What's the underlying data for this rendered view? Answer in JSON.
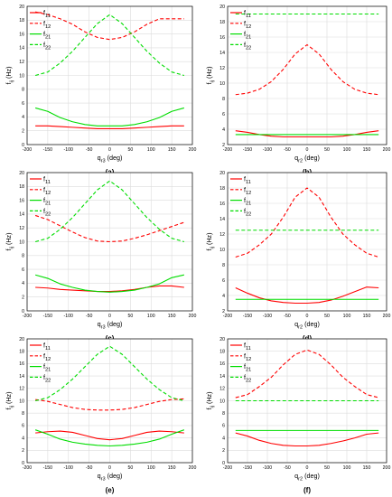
{
  "colors": {
    "red": "#ff0000",
    "green": "#00dd00",
    "grid": "#dcdcdc",
    "axis": "#000000"
  },
  "chart_data": [
    {
      "panel_label": "(a)",
      "type": "line",
      "xlabel": "q",
      "xlabel_sub": "r3",
      "xlabel_unit": " (deg)",
      "ylabel": "f",
      "ylabel_sub": "ij",
      "ylabel_unit": " (Hz)",
      "xlim": [
        -200,
        200
      ],
      "ylim": [
        0,
        20
      ],
      "xticks": [
        "-200",
        "-150",
        "-100",
        "-50",
        "0",
        "50",
        "100",
        "150",
        "200"
      ],
      "yticks": [
        "0",
        "2",
        "4",
        "6",
        "8",
        "10",
        "12",
        "14",
        "16",
        "18",
        "20"
      ],
      "grid": true,
      "legend_position": "top-left",
      "x": [
        -180,
        -150,
        -120,
        -90,
        -60,
        -30,
        0,
        30,
        60,
        90,
        120,
        150,
        180
      ],
      "series": [
        {
          "name": "f",
          "name_sub": "11",
          "color": "#ff0000",
          "dashed": false,
          "values": [
            2.7,
            2.7,
            2.6,
            2.5,
            2.4,
            2.3,
            2.3,
            2.3,
            2.4,
            2.5,
            2.6,
            2.7,
            2.7
          ]
        },
        {
          "name": "f",
          "name_sub": "12",
          "color": "#ff0000",
          "dashed": true,
          "values": [
            19.2,
            18.8,
            18.2,
            17.4,
            16.3,
            15.5,
            15.2,
            15.5,
            16.3,
            17.4,
            18.2,
            18.2,
            18.2
          ]
        },
        {
          "name": "f",
          "name_sub": "21",
          "color": "#00dd00",
          "dashed": false,
          "values": [
            5.3,
            4.8,
            3.9,
            3.3,
            2.9,
            2.7,
            2.7,
            2.7,
            2.9,
            3.3,
            3.9,
            4.8,
            5.3
          ]
        },
        {
          "name": "f",
          "name_sub": "22",
          "color": "#00dd00",
          "dashed": true,
          "values": [
            10.0,
            10.5,
            11.8,
            13.5,
            15.5,
            17.5,
            18.8,
            17.5,
            15.5,
            13.5,
            11.8,
            10.5,
            10.0
          ]
        }
      ]
    },
    {
      "panel_label": "(b)",
      "type": "line",
      "xlabel": "q",
      "xlabel_sub": "r2",
      "xlabel_unit": " (deg)",
      "ylabel": "f",
      "ylabel_sub": "ij",
      "ylabel_unit": " (Hz)",
      "xlim": [
        -200,
        200
      ],
      "ylim": [
        2,
        20
      ],
      "xticks": [
        "-200",
        "-150",
        "-100",
        "-50",
        "0",
        "50",
        "100",
        "150",
        "200"
      ],
      "yticks": [
        "2",
        "4",
        "6",
        "8",
        "10",
        "12",
        "14",
        "16",
        "18",
        "20"
      ],
      "grid": true,
      "legend_position": "top-left",
      "x": [
        -180,
        -150,
        -120,
        -90,
        -60,
        -30,
        0,
        30,
        60,
        90,
        120,
        150,
        180
      ],
      "series": [
        {
          "name": "f",
          "name_sub": "11",
          "color": "#ff0000",
          "dashed": false,
          "values": [
            3.8,
            3.6,
            3.3,
            3.1,
            3.0,
            3.0,
            3.0,
            3.0,
            3.0,
            3.1,
            3.3,
            3.6,
            3.8
          ]
        },
        {
          "name": "f",
          "name_sub": "12",
          "color": "#ff0000",
          "dashed": true,
          "values": [
            8.5,
            8.7,
            9.2,
            10.2,
            11.8,
            13.8,
            15.0,
            13.8,
            11.8,
            10.2,
            9.2,
            8.7,
            8.5
          ]
        },
        {
          "name": "f",
          "name_sub": "21",
          "color": "#00dd00",
          "dashed": false,
          "values": [
            3.3,
            3.3,
            3.3,
            3.3,
            3.3,
            3.3,
            3.3,
            3.3,
            3.3,
            3.3,
            3.3,
            3.3,
            3.3
          ]
        },
        {
          "name": "f",
          "name_sub": "22",
          "color": "#00dd00",
          "dashed": true,
          "values": [
            19.0,
            19.0,
            19.0,
            19.0,
            19.0,
            19.0,
            19.0,
            19.0,
            19.0,
            19.0,
            19.0,
            19.0,
            19.0
          ]
        }
      ]
    },
    {
      "panel_label": "(c)",
      "type": "line",
      "xlabel": "q",
      "xlabel_sub": "r3",
      "xlabel_unit": " (deg)",
      "ylabel": "f",
      "ylabel_sub": "ij",
      "ylabel_unit": " (Hz)",
      "xlim": [
        -200,
        200
      ],
      "ylim": [
        0,
        20
      ],
      "xticks": [
        "-200",
        "-150",
        "-100",
        "-50",
        "0",
        "50",
        "100",
        "150",
        "200"
      ],
      "yticks": [
        "0",
        "2",
        "4",
        "6",
        "8",
        "10",
        "12",
        "14",
        "16",
        "18",
        "20"
      ],
      "grid": true,
      "legend_position": "top-left",
      "x": [
        -180,
        -150,
        -120,
        -90,
        -60,
        -30,
        0,
        30,
        60,
        90,
        120,
        150,
        180
      ],
      "series": [
        {
          "name": "f",
          "name_sub": "11",
          "color": "#ff0000",
          "dashed": false,
          "values": [
            3.4,
            3.3,
            3.1,
            3.0,
            2.9,
            2.8,
            2.8,
            2.9,
            3.1,
            3.4,
            3.6,
            3.6,
            3.4
          ]
        },
        {
          "name": "f",
          "name_sub": "12",
          "color": "#ff0000",
          "dashed": true,
          "values": [
            13.8,
            13.2,
            12.3,
            11.4,
            10.6,
            10.1,
            10.0,
            10.1,
            10.5,
            11.0,
            11.6,
            12.2,
            12.8
          ]
        },
        {
          "name": "f",
          "name_sub": "21",
          "color": "#00dd00",
          "dashed": false,
          "values": [
            5.2,
            4.7,
            3.9,
            3.4,
            3.0,
            2.8,
            2.7,
            2.8,
            3.0,
            3.4,
            3.9,
            4.8,
            5.2
          ]
        },
        {
          "name": "f",
          "name_sub": "22",
          "color": "#00dd00",
          "dashed": true,
          "values": [
            10.0,
            10.5,
            11.8,
            13.5,
            15.5,
            17.5,
            18.8,
            17.5,
            15.5,
            13.5,
            11.8,
            10.5,
            10.0
          ]
        }
      ]
    },
    {
      "panel_label": "(d)",
      "type": "line",
      "xlabel": "q",
      "xlabel_sub": "r2",
      "xlabel_unit": " (deg)",
      "ylabel": "f",
      "ylabel_sub": "ij",
      "ylabel_unit": " (Hz)",
      "xlim": [
        -200,
        200
      ],
      "ylim": [
        2,
        20
      ],
      "xticks": [
        "-200",
        "-150",
        "-100",
        "-50",
        "0",
        "50",
        "100",
        "150",
        "200"
      ],
      "yticks": [
        "2",
        "4",
        "6",
        "8",
        "10",
        "12",
        "14",
        "16",
        "18",
        "20"
      ],
      "grid": true,
      "legend_position": "top-left",
      "x": [
        -180,
        -150,
        -120,
        -90,
        -60,
        -30,
        0,
        30,
        60,
        90,
        120,
        150,
        180
      ],
      "series": [
        {
          "name": "f",
          "name_sub": "11",
          "color": "#ff0000",
          "dashed": false,
          "values": [
            5.0,
            4.3,
            3.7,
            3.3,
            3.1,
            3.0,
            3.0,
            3.1,
            3.4,
            3.9,
            4.5,
            5.1,
            5.0
          ]
        },
        {
          "name": "f",
          "name_sub": "12",
          "color": "#ff0000",
          "dashed": true,
          "values": [
            9.0,
            9.5,
            10.6,
            12.0,
            14.2,
            16.8,
            18.0,
            16.8,
            14.2,
            12.0,
            10.6,
            9.5,
            9.0
          ]
        },
        {
          "name": "f",
          "name_sub": "21",
          "color": "#00dd00",
          "dashed": false,
          "values": [
            3.5,
            3.5,
            3.5,
            3.5,
            3.5,
            3.5,
            3.5,
            3.5,
            3.5,
            3.5,
            3.5,
            3.5,
            3.5
          ]
        },
        {
          "name": "f",
          "name_sub": "22",
          "color": "#00dd00",
          "dashed": true,
          "values": [
            12.5,
            12.5,
            12.5,
            12.5,
            12.5,
            12.5,
            12.5,
            12.5,
            12.5,
            12.5,
            12.5,
            12.5,
            12.5
          ]
        }
      ]
    },
    {
      "panel_label": "(e)",
      "type": "line",
      "xlabel": "q",
      "xlabel_sub": "r3",
      "xlabel_unit": " (deg)",
      "ylabel": "f",
      "ylabel_sub": "ij",
      "ylabel_unit": " (Hz)",
      "xlim": [
        -200,
        200
      ],
      "ylim": [
        0,
        20
      ],
      "xticks": [
        "-200",
        "-150",
        "-100",
        "-50",
        "0",
        "50",
        "100",
        "150",
        "200"
      ],
      "yticks": [
        "0",
        "2",
        "4",
        "6",
        "8",
        "10",
        "12",
        "14",
        "16",
        "18",
        "20"
      ],
      "grid": true,
      "legend_position": "top-left",
      "x": [
        -180,
        -150,
        -120,
        -90,
        -60,
        -30,
        0,
        30,
        60,
        90,
        120,
        150,
        180
      ],
      "series": [
        {
          "name": "f",
          "name_sub": "11",
          "color": "#ff0000",
          "dashed": false,
          "values": [
            4.8,
            5.0,
            5.1,
            4.9,
            4.4,
            3.9,
            3.7,
            3.9,
            4.4,
            4.9,
            5.1,
            5.0,
            4.8
          ]
        },
        {
          "name": "f",
          "name_sub": "12",
          "color": "#ff0000",
          "dashed": true,
          "values": [
            10.2,
            9.9,
            9.4,
            8.9,
            8.6,
            8.5,
            8.5,
            8.6,
            8.9,
            9.4,
            9.9,
            10.2,
            10.3
          ]
        },
        {
          "name": "f",
          "name_sub": "21",
          "color": "#00dd00",
          "dashed": false,
          "values": [
            5.3,
            4.6,
            3.8,
            3.3,
            3.0,
            2.8,
            2.7,
            2.8,
            3.0,
            3.3,
            3.8,
            4.6,
            5.3
          ]
        },
        {
          "name": "f",
          "name_sub": "22",
          "color": "#00dd00",
          "dashed": true,
          "values": [
            10.0,
            10.5,
            11.8,
            13.5,
            15.5,
            17.5,
            18.8,
            17.5,
            15.5,
            13.5,
            11.8,
            10.5,
            10.0
          ]
        }
      ]
    },
    {
      "panel_label": "(f)",
      "type": "line",
      "xlabel": "q",
      "xlabel_sub": "r2",
      "xlabel_unit": " (deg)",
      "ylabel": "f",
      "ylabel_sub": "ij",
      "ylabel_unit": " (Hz)",
      "xlim": [
        -200,
        200
      ],
      "ylim": [
        0,
        20
      ],
      "xticks": [
        "-200",
        "-150",
        "-100",
        "-50",
        "0",
        "50",
        "100",
        "150",
        "200"
      ],
      "yticks": [
        "0",
        "2",
        "4",
        "6",
        "8",
        "10",
        "12",
        "14",
        "16",
        "18",
        "20"
      ],
      "grid": true,
      "legend_position": "top-left",
      "x": [
        -180,
        -150,
        -120,
        -90,
        -60,
        -30,
        0,
        30,
        60,
        90,
        120,
        150,
        180
      ],
      "series": [
        {
          "name": "f",
          "name_sub": "11",
          "color": "#ff0000",
          "dashed": false,
          "values": [
            4.8,
            4.3,
            3.6,
            3.1,
            2.8,
            2.7,
            2.7,
            2.8,
            3.1,
            3.5,
            4.0,
            4.6,
            4.8
          ]
        },
        {
          "name": "f",
          "name_sub": "12",
          "color": "#ff0000",
          "dashed": true,
          "values": [
            10.5,
            11.0,
            12.3,
            13.8,
            15.8,
            17.5,
            18.2,
            17.5,
            15.8,
            13.8,
            12.3,
            11.0,
            10.5
          ]
        },
        {
          "name": "f",
          "name_sub": "21",
          "color": "#00dd00",
          "dashed": false,
          "values": [
            5.2,
            5.2,
            5.2,
            5.2,
            5.2,
            5.2,
            5.2,
            5.2,
            5.2,
            5.2,
            5.2,
            5.2,
            5.2
          ]
        },
        {
          "name": "f",
          "name_sub": "22",
          "color": "#00dd00",
          "dashed": true,
          "values": [
            10.0,
            10.0,
            10.0,
            10.0,
            10.0,
            10.0,
            10.0,
            10.0,
            10.0,
            10.0,
            10.0,
            10.0,
            10.0
          ]
        }
      ]
    }
  ]
}
